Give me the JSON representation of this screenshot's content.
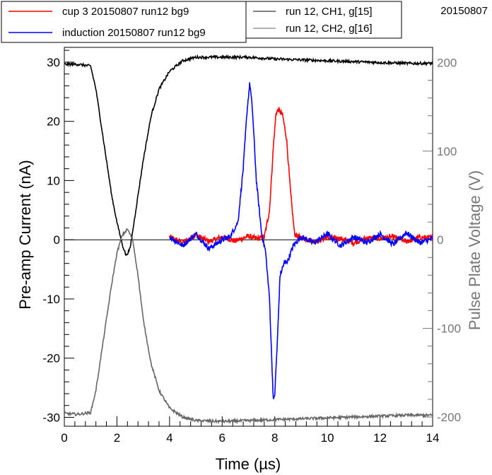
{
  "chart_data": {
    "type": "line",
    "corner_label": "20150807",
    "xlabel": "Time (µs)",
    "ylabel_left": "Pre-amp Current (nA)",
    "ylabel_right": "Pulse Plate Voltage (V)",
    "xlim": [
      0,
      14
    ],
    "ylim_left": [
      -31.5,
      32.5
    ],
    "ylim_right": [
      -210.4,
      217.1
    ],
    "x_ticks": [
      "0",
      "2",
      "4",
      "6",
      "8",
      "10",
      "12",
      "14"
    ],
    "y_left_ticks": [
      "-30",
      "-20",
      "-10",
      "0",
      "10",
      "20",
      "30"
    ],
    "y_right_ticks": [
      "-200",
      "-100",
      "0",
      "100",
      "200"
    ],
    "colors": {
      "red": "#ff0000",
      "blue": "#0000ff",
      "ch1": "#000000",
      "ch2": "#666666",
      "right_axis": "#777777"
    },
    "legend_left": [
      {
        "name": "cup 3 20150807 run12 bg9",
        "color": "#ff0000"
      },
      {
        "name": "induction 20150807 run12 bg9",
        "color": "#0000ff"
      }
    ],
    "legend_right": [
      {
        "name": "run 12, CH1, g[15]",
        "color": "#000000"
      },
      {
        "name": "run 12, CH2, g[16]",
        "color": "#666666"
      }
    ],
    "series": [
      {
        "name": "cup 3 20150807 run12 bg9",
        "axis": "left",
        "color": "#ff0000",
        "x": [
          4.0,
          4.5,
          5.0,
          5.5,
          6.0,
          6.5,
          7.0,
          7.3,
          7.6,
          7.8,
          7.95,
          8.05,
          8.15,
          8.3,
          8.45,
          8.6,
          8.75,
          8.9,
          9.1,
          9.5,
          10.0,
          10.5,
          11.0,
          11.5,
          12.0,
          12.5,
          13.0,
          13.5,
          14.0
        ],
        "y": [
          0.5,
          -0.5,
          0.8,
          -0.3,
          0.5,
          -0.2,
          0.6,
          0.2,
          0.4,
          5.0,
          16.0,
          21.5,
          22.0,
          21.0,
          17.0,
          8.0,
          1.0,
          0.5,
          0.3,
          -0.4,
          0.4,
          0.2,
          -0.5,
          0.3,
          0.2,
          0.5,
          -0.3,
          0.4,
          0.3
        ]
      },
      {
        "name": "induction 20150807 run12 bg9",
        "axis": "left",
        "color": "#0000ff",
        "x": [
          4.0,
          4.5,
          5.0,
          5.5,
          6.0,
          6.3,
          6.6,
          6.8,
          6.95,
          7.05,
          7.15,
          7.3,
          7.5,
          7.65,
          7.8,
          7.9,
          7.95,
          8.0,
          8.1,
          8.2,
          8.35,
          8.5,
          8.7,
          9.0,
          9.5,
          10.0,
          10.5,
          11.0,
          11.5,
          12.0,
          12.5,
          13.0,
          13.5,
          14.0
        ],
        "y": [
          0.5,
          -1.0,
          1.0,
          -1.5,
          0.0,
          0.5,
          3.0,
          12.0,
          22.0,
          26.5,
          22.0,
          10.0,
          1.0,
          -2.0,
          -10.0,
          -22.0,
          -27.5,
          -26.0,
          -17.0,
          -6.0,
          -4.0,
          -3.5,
          -1.0,
          0.5,
          -0.5,
          1.0,
          -1.0,
          0.5,
          -0.5,
          1.0,
          -0.8,
          1.2,
          -0.5,
          0.2
        ]
      },
      {
        "name": "run 12, CH1, g[15]",
        "axis": "right",
        "color": "#000000",
        "x": [
          0.0,
          0.5,
          1.0,
          1.2,
          1.5,
          1.8,
          2.0,
          2.2,
          2.35,
          2.5,
          2.7,
          3.0,
          3.3,
          3.6,
          4.0,
          4.5,
          5.0,
          6.0,
          7.0,
          8.0,
          9.0,
          10.0,
          11.0,
          12.0,
          13.0,
          14.0
        ],
        "y": [
          198,
          198,
          196,
          170,
          110,
          50,
          20,
          -5,
          -18,
          -10,
          30,
          90,
          140,
          170,
          190,
          202,
          206,
          206,
          206,
          204,
          203,
          202,
          201,
          200,
          199,
          199
        ]
      },
      {
        "name": "run 12, CH2, g[16]",
        "axis": "right",
        "color": "#666666",
        "x": [
          0.0,
          0.5,
          1.0,
          1.2,
          1.5,
          1.8,
          2.0,
          2.2,
          2.4,
          2.6,
          2.8,
          3.0,
          3.3,
          3.6,
          4.0,
          4.5,
          5.0,
          6.0,
          7.0,
          8.0,
          9.0,
          10.0,
          11.0,
          12.0,
          13.0,
          14.0
        ],
        "y": [
          -196,
          -197,
          -195,
          -170,
          -110,
          -50,
          -15,
          5,
          12,
          0,
          -40,
          -90,
          -140,
          -170,
          -190,
          -200,
          -204,
          -205,
          -204,
          -203,
          -202,
          -201,
          -200,
          -199,
          -198,
          -198
        ]
      }
    ]
  }
}
